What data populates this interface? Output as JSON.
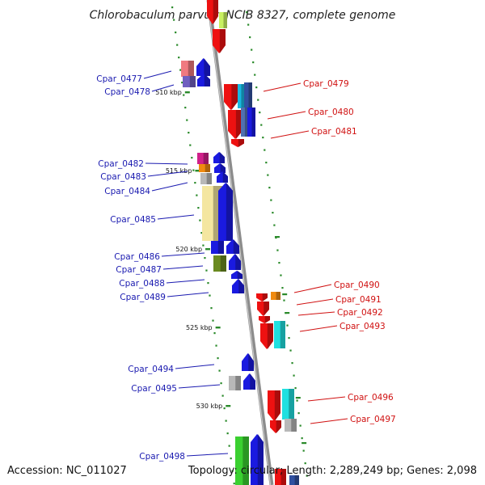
{
  "header": {
    "title": "Chlorobaculum parvum NCIB 8327, complete genome"
  },
  "footer": {
    "accession": "Accession: NC_011027",
    "summary": "Topology: circular; Length: 2,289,249 bp; Genes: 2,098"
  },
  "scale_labels": [
    "510 kbp",
    "515 kbp",
    "520 kbp",
    "525 kbp",
    "530 kbp"
  ],
  "colors": {
    "forward_cds": "#1a1ae0",
    "reverse_cds": "#ee1111",
    "label_forward": "#1a1ab0",
    "label_reverse": "#d01010",
    "backbone": "#8c8c8c",
    "gc_dots": "#2a8a2a"
  },
  "genes_forward": [
    "Cpar_0477",
    "Cpar_0478",
    "Cpar_0482",
    "Cpar_0483",
    "Cpar_0484",
    "Cpar_0485",
    "Cpar_0486",
    "Cpar_0487",
    "Cpar_0488",
    "Cpar_0489",
    "Cpar_0494",
    "Cpar_0495",
    "Cpar_0498"
  ],
  "genes_reverse": [
    "Cpar_0479",
    "Cpar_0480",
    "Cpar_0481",
    "Cpar_0490",
    "Cpar_0491",
    "Cpar_0492",
    "Cpar_0493",
    "Cpar_0496",
    "Cpar_0497"
  ]
}
